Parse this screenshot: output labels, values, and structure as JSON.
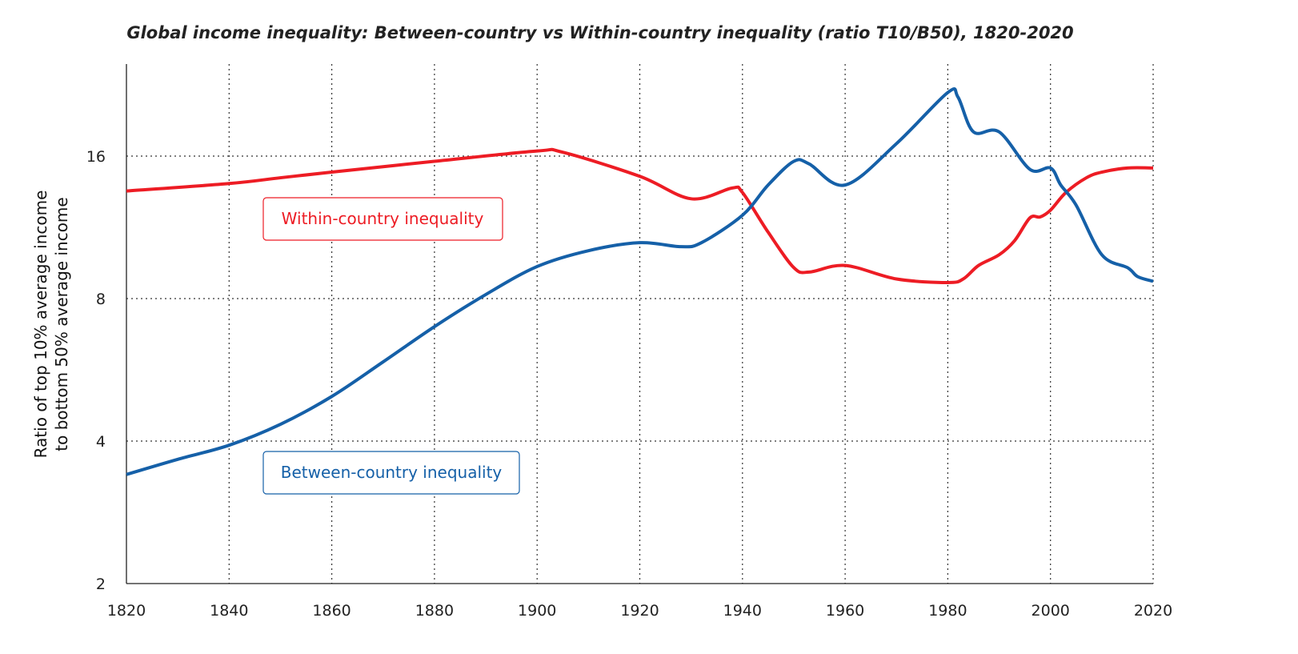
{
  "chart_data": {
    "type": "line",
    "title": "Global income inequality: Between-country vs Within-country inequality (ratio T10/B50), 1820-2020",
    "xlabel": "",
    "ylabel": [
      "Ratio of top 10% average income",
      "to bottom 50% average income"
    ],
    "xlim": [
      1820,
      2020
    ],
    "ylim": [
      2,
      25
    ],
    "yscale": "log2",
    "grid": true,
    "xticks": [
      1820,
      1840,
      1860,
      1880,
      1900,
      1920,
      1940,
      1960,
      1980,
      2000,
      2020
    ],
    "yticks": [
      2,
      4,
      8,
      16
    ],
    "series": [
      {
        "name": "Within-country inequality",
        "color": "#ED1C24",
        "x": [
          1820,
          1840,
          1850,
          1860,
          1880,
          1900,
          1905,
          1920,
          1930,
          1938,
          1940,
          1945,
          1950,
          1953,
          1960,
          1970,
          1980,
          1983,
          1986,
          1990,
          1993,
          1996,
          1998,
          2000,
          2003,
          2007,
          2010,
          2015,
          2020
        ],
        "y": [
          13.5,
          14.0,
          14.4,
          14.8,
          15.6,
          16.4,
          16.3,
          14.5,
          13.0,
          13.7,
          13.4,
          11.05,
          9.3,
          9.1,
          9.4,
          8.8,
          8.65,
          8.8,
          9.4,
          9.9,
          10.6,
          11.85,
          11.9,
          12.3,
          13.4,
          14.4,
          14.8,
          15.1,
          15.1
        ]
      },
      {
        "name": "Between-country inequality",
        "color": "#1560A8",
        "x": [
          1820,
          1830,
          1840,
          1850,
          1860,
          1870,
          1880,
          1890,
          1900,
          1910,
          1920,
          1928,
          1932,
          1940,
          1945,
          1950,
          1953,
          1960,
          1970,
          1980,
          1982,
          1985,
          1990,
          1996,
          2000,
          2002,
          2005,
          2010,
          2015,
          2017,
          2020
        ],
        "y": [
          3.4,
          3.66,
          3.92,
          4.34,
          4.97,
          5.88,
          6.98,
          8.16,
          9.35,
          10.1,
          10.5,
          10.3,
          10.5,
          12.0,
          13.9,
          15.6,
          15.4,
          13.9,
          17.0,
          21.8,
          21.3,
          18.0,
          18.0,
          15.0,
          15.1,
          13.9,
          12.6,
          9.9,
          9.3,
          8.9,
          8.7
        ]
      }
    ]
  }
}
